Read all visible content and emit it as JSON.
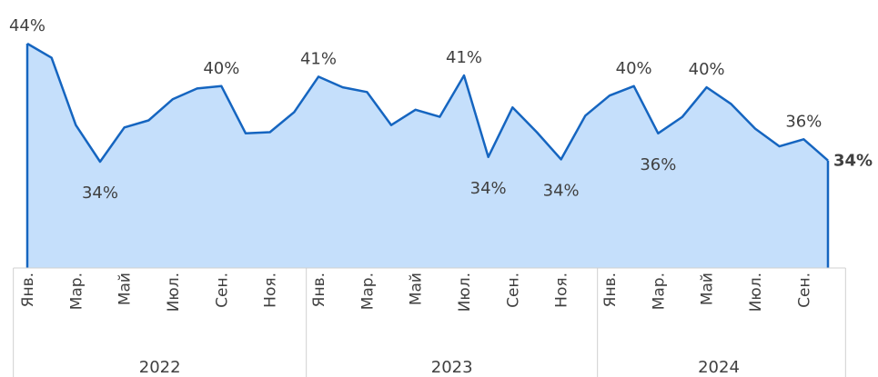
{
  "chart_data": {
    "type": "area",
    "categories": [
      "Янв.",
      null,
      "Мар.",
      null,
      "Май",
      null,
      "Июл.",
      null,
      "Сен.",
      null,
      "Ноя.",
      null,
      "Янв.",
      null,
      "Мар.",
      null,
      "Май",
      null,
      "Июл.",
      null,
      "Сен.",
      null,
      "Ноя.",
      null,
      "Янв.",
      null,
      "Мар.",
      null,
      "Май",
      null,
      "Июл.",
      null,
      "Сен.",
      null
    ],
    "years": [
      "2022",
      "2023",
      "2024"
    ],
    "series": [
      {
        "color": "#1565c0",
        "fill": "#c5dffb",
        "values": [
          44,
          42.8,
          37.1,
          34,
          36.9,
          37.5,
          39.3,
          40.2,
          40.4,
          36.4,
          36.5,
          38.2,
          41.2,
          40.3,
          39.9,
          37.1,
          38.4,
          37.8,
          41.3,
          34.4,
          38.6,
          36.5,
          34.2,
          37.9,
          39.6,
          40.4,
          36.4,
          37.8,
          40.3,
          38.9,
          36.8,
          35.3,
          35.9,
          34.1
        ],
        "value_labels": [
          "44%",
          null,
          null,
          "34%",
          null,
          null,
          null,
          null,
          "40%",
          null,
          null,
          null,
          "41%",
          null,
          null,
          null,
          null,
          null,
          "41%",
          "34%",
          null,
          null,
          "34%",
          null,
          null,
          "40%",
          "36%",
          null,
          "40%",
          null,
          null,
          null,
          "36%",
          "34%"
        ]
      }
    ],
    "ylim": [
      25,
      44
    ]
  }
}
